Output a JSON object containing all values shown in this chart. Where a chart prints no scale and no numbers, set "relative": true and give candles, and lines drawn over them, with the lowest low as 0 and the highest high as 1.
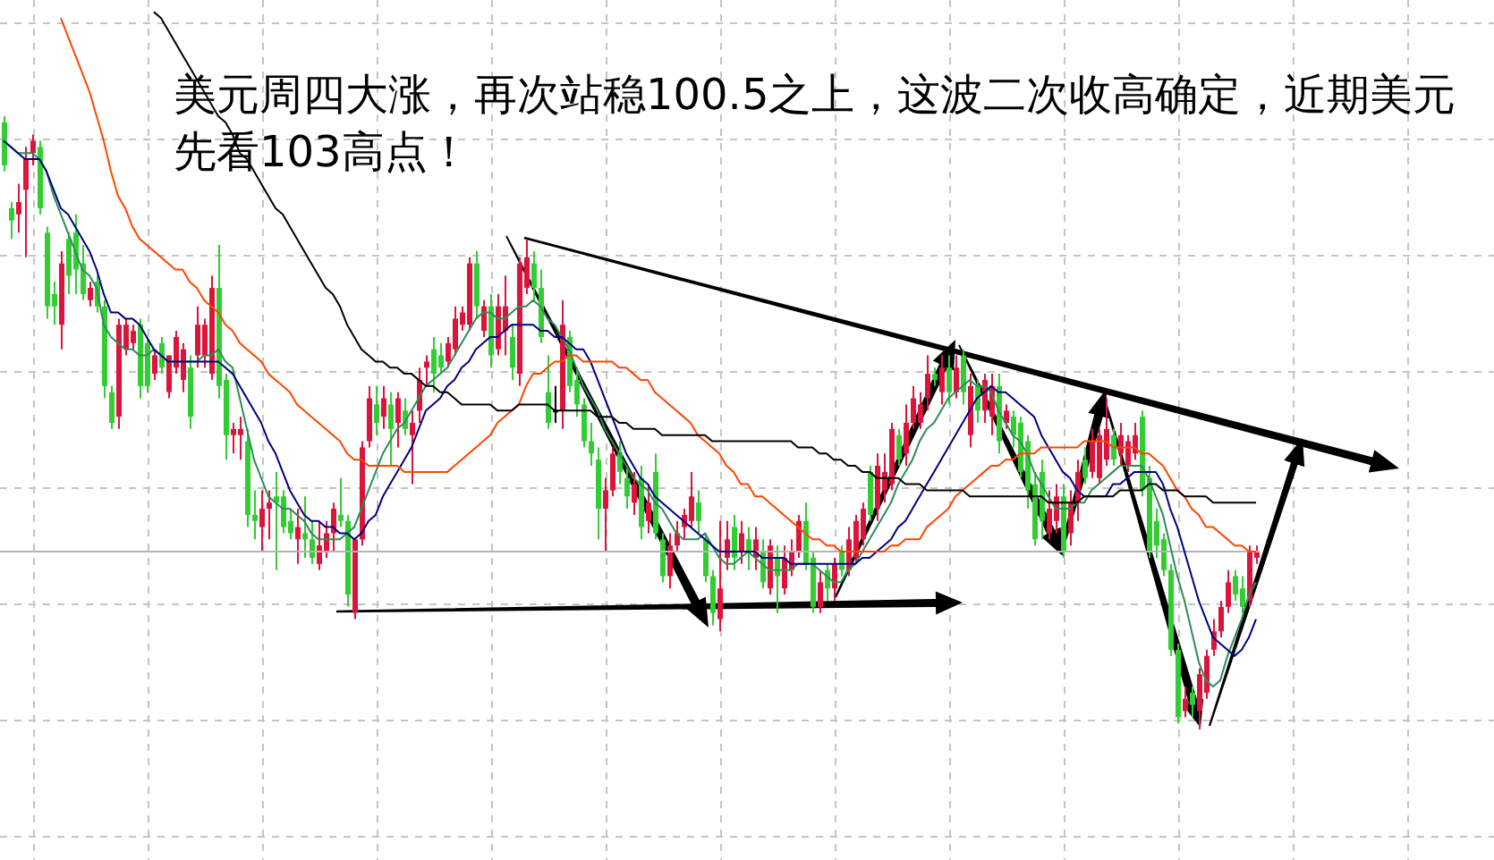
{
  "chart_data": {
    "type": "candlestick",
    "relative": true,
    "grid": true,
    "tick_labels": false,
    "annotations": [
      "美元周四大涨，再次站稳100.5之上，这波二次收高确定，近期美元先看103高点！"
    ],
    "categories": [
      null,
      null,
      null,
      null,
      null,
      null,
      null,
      null,
      null,
      null,
      null,
      null,
      null,
      null,
      null,
      null,
      null,
      null,
      null,
      null,
      null,
      null,
      null,
      null,
      null,
      null,
      null,
      null,
      null,
      null,
      null,
      null,
      null,
      null,
      null,
      null,
      null,
      null,
      null,
      null,
      null,
      null,
      null,
      null,
      null,
      null,
      null,
      null,
      null,
      null,
      null,
      null,
      null,
      null,
      null,
      null,
      null,
      null,
      null,
      null,
      null,
      null,
      null,
      null,
      null,
      null,
      null,
      null,
      null,
      null,
      null,
      null,
      null,
      null,
      null,
      null,
      null,
      null,
      null,
      null,
      null,
      null,
      null,
      null,
      null,
      null,
      null,
      null,
      null,
      null,
      null,
      null,
      null,
      null,
      null,
      null,
      null,
      null,
      null,
      null,
      null,
      null,
      null,
      null,
      null,
      null,
      null,
      null,
      null,
      null,
      null,
      null,
      null,
      null,
      null,
      null,
      null,
      null,
      null,
      null,
      null,
      null,
      null,
      null,
      null,
      null,
      null,
      null,
      null,
      null,
      null,
      null,
      null,
      null,
      null,
      null,
      null,
      null,
      null,
      null,
      null,
      null,
      null,
      null,
      null,
      null,
      null,
      null,
      null,
      null,
      null,
      null,
      null,
      null,
      null,
      null,
      null,
      null,
      null,
      null,
      null,
      null,
      null,
      null,
      null,
      null,
      null,
      null,
      null,
      null,
      null,
      null,
      null,
      null,
      null,
      null
    ],
    "ohlc": [
      [
        0.99,
        1.0,
        0.91,
        0.92
      ],
      [
        0.85,
        0.86,
        0.8,
        0.83
      ],
      [
        0.84,
        0.89,
        0.81,
        0.86
      ],
      [
        0.88,
        0.95,
        0.77,
        0.93
      ],
      [
        0.94,
        0.97,
        0.92,
        0.96
      ],
      [
        0.95,
        0.96,
        0.84,
        0.85
      ],
      [
        0.81,
        0.82,
        0.67,
        0.69
      ],
      [
        0.71,
        0.73,
        0.66,
        0.69
      ],
      [
        0.66,
        0.78,
        0.62,
        0.76
      ],
      [
        0.8,
        0.81,
        0.71,
        0.74
      ],
      [
        0.81,
        0.84,
        0.71,
        0.75
      ],
      [
        0.76,
        0.79,
        0.7,
        0.71
      ],
      [
        0.7,
        0.73,
        0.69,
        0.72
      ],
      [
        0.73,
        0.74,
        0.68,
        0.69
      ],
      [
        0.69,
        0.7,
        0.54,
        0.56
      ],
      [
        0.55,
        0.56,
        0.49,
        0.5
      ],
      [
        0.51,
        0.67,
        0.49,
        0.66
      ],
      [
        0.62,
        0.67,
        0.61,
        0.66
      ],
      [
        0.63,
        0.66,
        0.62,
        0.65
      ],
      [
        0.66,
        0.67,
        0.54,
        0.56
      ],
      [
        0.63,
        0.64,
        0.55,
        0.56
      ],
      [
        0.58,
        0.62,
        0.57,
        0.61
      ],
      [
        0.63,
        0.64,
        0.58,
        0.59
      ],
      [
        0.55,
        0.61,
        0.54,
        0.61
      ],
      [
        0.59,
        0.65,
        0.58,
        0.64
      ],
      [
        0.57,
        0.63,
        0.55,
        0.62
      ],
      [
        0.59,
        0.61,
        0.49,
        0.51
      ],
      [
        0.61,
        0.69,
        0.59,
        0.66
      ],
      [
        0.61,
        0.67,
        0.59,
        0.66
      ],
      [
        0.58,
        0.74,
        0.57,
        0.72
      ],
      [
        0.72,
        0.79,
        0.54,
        0.56
      ],
      [
        0.57,
        0.58,
        0.44,
        0.48
      ],
      [
        0.48,
        0.5,
        0.45,
        0.49
      ],
      [
        0.48,
        0.51,
        0.44,
        0.49
      ],
      [
        0.47,
        0.49,
        0.33,
        0.35
      ],
      [
        0.35,
        0.39,
        0.31,
        0.34
      ],
      [
        0.33,
        0.39,
        0.29,
        0.36
      ],
      [
        0.36,
        0.39,
        0.31,
        0.37
      ],
      [
        0.38,
        0.42,
        0.26,
        0.37
      ],
      [
        0.38,
        0.39,
        0.32,
        0.33
      ],
      [
        0.34,
        0.36,
        0.31,
        0.32
      ],
      [
        0.31,
        0.36,
        0.27,
        0.33
      ],
      [
        0.32,
        0.38,
        0.28,
        0.31
      ],
      [
        0.31,
        0.34,
        0.27,
        0.28
      ],
      [
        0.27,
        0.34,
        0.26,
        0.3
      ],
      [
        0.29,
        0.34,
        0.28,
        0.32
      ],
      [
        0.32,
        0.37,
        0.29,
        0.36
      ],
      [
        0.35,
        0.41,
        0.33,
        0.34
      ],
      [
        0.34,
        0.35,
        0.2,
        0.22
      ],
      [
        0.19,
        0.31,
        0.18,
        0.31
      ],
      [
        0.31,
        0.47,
        0.3,
        0.46
      ],
      [
        0.47,
        0.56,
        0.46,
        0.54
      ],
      [
        0.53,
        0.56,
        0.48,
        0.5
      ],
      [
        0.51,
        0.56,
        0.49,
        0.54
      ],
      [
        0.53,
        0.55,
        0.43,
        0.49
      ],
      [
        0.5,
        0.55,
        0.46,
        0.54
      ],
      [
        0.52,
        0.54,
        0.48,
        0.49
      ],
      [
        0.48,
        0.52,
        0.4,
        0.5
      ],
      [
        0.52,
        0.59,
        0.5,
        0.57
      ],
      [
        0.59,
        0.61,
        0.56,
        0.6
      ],
      [
        0.62,
        0.64,
        0.55,
        0.58
      ],
      [
        0.61,
        0.63,
        0.58,
        0.59
      ],
      [
        0.6,
        0.64,
        0.59,
        0.63
      ],
      [
        0.62,
        0.69,
        0.61,
        0.67
      ],
      [
        0.66,
        0.69,
        0.65,
        0.68
      ],
      [
        0.66,
        0.77,
        0.65,
        0.76
      ],
      [
        0.76,
        0.78,
        0.67,
        0.69
      ],
      [
        0.65,
        0.7,
        0.64,
        0.69
      ],
      [
        0.69,
        0.71,
        0.59,
        0.61
      ],
      [
        0.62,
        0.71,
        0.61,
        0.69
      ],
      [
        0.65,
        0.74,
        0.61,
        0.69
      ],
      [
        0.64,
        0.66,
        0.57,
        0.59
      ],
      [
        0.58,
        0.77,
        0.56,
        0.76
      ],
      [
        0.72,
        0.8,
        0.71,
        0.77
      ],
      [
        0.76,
        0.78,
        0.7,
        0.72
      ],
      [
        0.72,
        0.75,
        0.63,
        0.64
      ],
      [
        0.55,
        0.61,
        0.49,
        0.5
      ],
      [
        0.52,
        0.56,
        0.5,
        0.52
      ],
      [
        0.52,
        0.7,
        0.49,
        0.66
      ],
      [
        0.64,
        0.65,
        0.55,
        0.56
      ],
      [
        0.57,
        0.59,
        0.51,
        0.53
      ],
      [
        0.53,
        0.54,
        0.46,
        0.47
      ],
      [
        0.47,
        0.5,
        0.43,
        0.45
      ],
      [
        0.44,
        0.46,
        0.31,
        0.36
      ],
      [
        0.36,
        0.41,
        0.29,
        0.39
      ],
      [
        0.39,
        0.46,
        0.38,
        0.45
      ],
      [
        0.45,
        0.47,
        0.4,
        0.42
      ],
      [
        0.41,
        0.43,
        0.36,
        0.38
      ],
      [
        0.37,
        0.42,
        0.35,
        0.4
      ],
      [
        0.41,
        0.43,
        0.31,
        0.33
      ],
      [
        0.34,
        0.4,
        0.32,
        0.37
      ],
      [
        0.42,
        0.45,
        0.31,
        0.32
      ],
      [
        0.31,
        0.32,
        0.24,
        0.25
      ],
      [
        0.25,
        0.32,
        0.23,
        0.3
      ],
      [
        0.3,
        0.34,
        0.29,
        0.32
      ],
      [
        0.33,
        0.36,
        0.31,
        0.35
      ],
      [
        0.34,
        0.42,
        0.33,
        0.38
      ],
      [
        0.37,
        0.39,
        0.32,
        0.34
      ],
      [
        0.31,
        0.32,
        0.24,
        0.25
      ],
      [
        0.25,
        0.26,
        0.17,
        0.19
      ],
      [
        0.18,
        0.34,
        0.16,
        0.23
      ],
      [
        0.28,
        0.34,
        0.26,
        0.31
      ],
      [
        0.33,
        0.35,
        0.26,
        0.28
      ],
      [
        0.29,
        0.34,
        0.27,
        0.32
      ],
      [
        0.31,
        0.33,
        0.26,
        0.29
      ],
      [
        0.28,
        0.33,
        0.26,
        0.31
      ],
      [
        0.29,
        0.31,
        0.23,
        0.24
      ],
      [
        0.23,
        0.31,
        0.22,
        0.3
      ],
      [
        0.28,
        0.3,
        0.19,
        0.25
      ],
      [
        0.23,
        0.3,
        0.22,
        0.28
      ],
      [
        0.26,
        0.31,
        0.25,
        0.29
      ],
      [
        0.29,
        0.35,
        0.28,
        0.34
      ],
      [
        0.34,
        0.37,
        0.26,
        0.27
      ],
      [
        0.28,
        0.29,
        0.19,
        0.2
      ],
      [
        0.2,
        0.26,
        0.19,
        0.24
      ],
      [
        0.26,
        0.27,
        0.21,
        0.23
      ],
      [
        0.23,
        0.28,
        0.21,
        0.27
      ],
      [
        0.29,
        0.3,
        0.25,
        0.26
      ],
      [
        0.26,
        0.33,
        0.25,
        0.31
      ],
      [
        0.28,
        0.35,
        0.27,
        0.34
      ],
      [
        0.31,
        0.37,
        0.3,
        0.36
      ],
      [
        0.42,
        0.43,
        0.34,
        0.35
      ],
      [
        0.36,
        0.45,
        0.34,
        0.43
      ],
      [
        0.39,
        0.45,
        0.37,
        0.42
      ],
      [
        0.4,
        0.5,
        0.39,
        0.49
      ],
      [
        0.48,
        0.49,
        0.43,
        0.44
      ],
      [
        0.45,
        0.53,
        0.43,
        0.5
      ],
      [
        0.5,
        0.56,
        0.49,
        0.54
      ],
      [
        0.5,
        0.55,
        0.49,
        0.53
      ],
      [
        0.54,
        0.61,
        0.52,
        0.58
      ],
      [
        0.58,
        0.59,
        0.56,
        0.57
      ],
      [
        0.55,
        0.61,
        0.53,
        0.59
      ],
      [
        0.59,
        0.61,
        0.53,
        0.55
      ],
      [
        0.55,
        0.61,
        0.54,
        0.59
      ],
      [
        0.61,
        0.62,
        0.53,
        0.55
      ],
      [
        0.48,
        0.58,
        0.46,
        0.56
      ],
      [
        0.56,
        0.57,
        0.5,
        0.52
      ],
      [
        0.52,
        0.58,
        0.5,
        0.57
      ],
      [
        0.51,
        0.58,
        0.48,
        0.56
      ],
      [
        0.56,
        0.58,
        0.45,
        0.47
      ],
      [
        0.5,
        0.53,
        0.49,
        0.52
      ],
      [
        0.51,
        0.52,
        0.46,
        0.48
      ],
      [
        0.5,
        0.51,
        0.41,
        0.42
      ],
      [
        0.47,
        0.48,
        0.36,
        0.39
      ],
      [
        0.4,
        0.42,
        0.3,
        0.31
      ],
      [
        0.42,
        0.44,
        0.31,
        0.34
      ],
      [
        0.32,
        0.39,
        0.31,
        0.36
      ],
      [
        0.34,
        0.4,
        0.32,
        0.38
      ],
      [
        0.38,
        0.4,
        0.28,
        0.29
      ],
      [
        0.32,
        0.39,
        0.3,
        0.37
      ],
      [
        0.37,
        0.44,
        0.34,
        0.42
      ],
      [
        0.44,
        0.46,
        0.4,
        0.41
      ],
      [
        0.42,
        0.49,
        0.41,
        0.47
      ],
      [
        0.41,
        0.49,
        0.4,
        0.48
      ],
      [
        0.44,
        0.54,
        0.43,
        0.49
      ],
      [
        0.48,
        0.49,
        0.43,
        0.44
      ],
      [
        0.45,
        0.5,
        0.43,
        0.48
      ],
      [
        0.43,
        0.48,
        0.42,
        0.47
      ],
      [
        0.45,
        0.5,
        0.44,
        0.48
      ],
      [
        0.51,
        0.52,
        0.38,
        0.39
      ],
      [
        0.41,
        0.43,
        0.28,
        0.29
      ],
      [
        0.34,
        0.36,
        0.28,
        0.3
      ],
      [
        0.31,
        0.32,
        0.25,
        0.26
      ],
      [
        0.26,
        0.27,
        0.12,
        0.13
      ],
      [
        0.13,
        0.14,
        0.01,
        0.02
      ],
      [
        0.03,
        0.07,
        0.02,
        0.05
      ],
      [
        0.06,
        0.07,
        0.02,
        0.04
      ],
      [
        0.03,
        0.1,
        0.0,
        0.09
      ],
      [
        0.06,
        0.13,
        0.05,
        0.12
      ],
      [
        0.13,
        0.18,
        0.12,
        0.16
      ],
      [
        0.16,
        0.21,
        0.15,
        0.2
      ],
      [
        0.2,
        0.26,
        0.19,
        0.24
      ],
      [
        0.25,
        0.26,
        0.21,
        0.22
      ],
      [
        0.23,
        0.25,
        0.19,
        0.2
      ],
      [
        0.21,
        0.3,
        0.2,
        0.29
      ],
      [
        0.28,
        0.3,
        0.27,
        0.29
      ]
    ],
    "colors": [
      "#32cd32",
      "#32cd32",
      "#dc143c",
      "#dc143c",
      "#dc143c",
      "#32cd32",
      "#32cd32",
      "#32cd32",
      "#dc143c",
      "#32cd32",
      "#32cd32",
      "#32cd32",
      "#dc143c",
      "#32cd32",
      "#32cd32",
      "#32cd32",
      "#dc143c",
      "#dc143c",
      "#dc143c",
      "#32cd32",
      "#32cd32",
      "#dc143c",
      "#32cd32",
      "#dc143c",
      "#dc143c",
      "#dc143c",
      "#32cd32",
      "#dc143c",
      "#dc143c",
      "#dc143c",
      "#32cd32",
      "#32cd32",
      "#dc143c",
      "#dc143c",
      "#32cd32",
      "#32cd32",
      "#dc143c",
      "#dc143c",
      "#32cd32",
      "#32cd32",
      "#32cd32",
      "#dc143c",
      "#32cd32",
      "#32cd32",
      "#dc143c",
      "#dc143c",
      "#dc143c",
      "#32cd32",
      "#32cd32",
      "#dc143c",
      "#dc143c",
      "#dc143c",
      "#32cd32",
      "#dc143c",
      "#32cd32",
      "#dc143c",
      "#32cd32",
      "#dc143c",
      "#dc143c",
      "#dc143c",
      "#32cd32",
      "#32cd32",
      "#dc143c",
      "#dc143c",
      "#dc143c",
      "#dc143c",
      "#32cd32",
      "#dc143c",
      "#32cd32",
      "#dc143c",
      "#dc143c",
      "#32cd32",
      "#dc143c",
      "#dc143c",
      "#32cd32",
      "#32cd32",
      "#32cd32",
      "#000000",
      "#dc143c",
      "#32cd32",
      "#32cd32",
      "#32cd32",
      "#32cd32",
      "#32cd32",
      "#dc143c",
      "#dc143c",
      "#32cd32",
      "#32cd32",
      "#dc143c",
      "#32cd32",
      "#dc143c",
      "#32cd32",
      "#32cd32",
      "#dc143c",
      "#dc143c",
      "#dc143c",
      "#dc143c",
      "#32cd32",
      "#32cd32",
      "#32cd32",
      "#dc143c",
      "#dc143c",
      "#32cd32",
      "#dc143c",
      "#32cd32",
      "#dc143c",
      "#32cd32",
      "#dc143c",
      "#32cd32",
      "#dc143c",
      "#dc143c",
      "#dc143c",
      "#32cd32",
      "#32cd32",
      "#dc143c",
      "#32cd32",
      "#dc143c",
      "#32cd32",
      "#dc143c",
      "#dc143c",
      "#dc143c",
      "#32cd32",
      "#dc143c",
      "#dc143c",
      "#dc143c",
      "#32cd32",
      "#dc143c",
      "#dc143c",
      "#dc143c",
      "#dc143c",
      "#32cd32",
      "#dc143c",
      "#32cd32",
      "#dc143c",
      "#32cd32",
      "#dc143c",
      "#32cd32",
      "#dc143c",
      "#dc143c",
      "#32cd32",
      "#dc143c",
      "#32cd32",
      "#32cd32",
      "#32cd32",
      "#32cd32",
      "#32cd32",
      "#dc143c",
      "#dc143c",
      "#32cd32",
      "#dc143c",
      "#dc143c",
      "#32cd32",
      "#dc143c",
      "#dc143c",
      "#dc143c",
      "#32cd32",
      "#dc143c",
      "#dc143c",
      "#dc143c",
      "#32cd32",
      "#32cd32",
      "#32cd32",
      "#32cd32",
      "#32cd32",
      "#32cd32",
      "#dc143c",
      "#32cd32",
      "#dc143c",
      "#dc143c",
      "#dc143c",
      "#dc143c",
      "#dc143c",
      "#32cd32",
      "#32cd32",
      "#dc143c",
      "#dc143c"
    ],
    "series": [
      {
        "type": "line",
        "color": "#2e8b57",
        "values": [
          0.96,
          0.95,
          0.94,
          0.94,
          0.94,
          0.93,
          0.91,
          0.87,
          0.84,
          0.81,
          0.78,
          0.75,
          0.74,
          0.72,
          0.66,
          0.64,
          0.63,
          0.62,
          0.62,
          0.61,
          0.61,
          0.62,
          0.61,
          0.6,
          0.6,
          0.6,
          0.6,
          0.6,
          0.61,
          0.61,
          0.62,
          0.6,
          0.59,
          0.54,
          0.49,
          0.44,
          0.41,
          0.38,
          0.37,
          0.36,
          0.36,
          0.35,
          0.34,
          0.32,
          0.31,
          0.31,
          0.31,
          0.31,
          0.32,
          0.33,
          0.36,
          0.39,
          0.42,
          0.45,
          0.47,
          0.49,
          0.5,
          0.52,
          0.54,
          0.56,
          0.57,
          0.58,
          0.59,
          0.61,
          0.63,
          0.65,
          0.67,
          0.68,
          0.68,
          0.67,
          0.67,
          0.68,
          0.69,
          0.69,
          0.7,
          0.69,
          0.67,
          0.66,
          0.64,
          0.62,
          0.59,
          0.56,
          0.54,
          0.52,
          0.49,
          0.47,
          0.45,
          0.43,
          0.41,
          0.4,
          0.39,
          0.37,
          0.36,
          0.34,
          0.32,
          0.31,
          0.31,
          0.31,
          0.32,
          0.3,
          0.28,
          0.27,
          0.27,
          0.28,
          0.29,
          0.28,
          0.27,
          0.26,
          0.26,
          0.26,
          0.26,
          0.27,
          0.27,
          0.27,
          0.26,
          0.25,
          0.24,
          0.24,
          0.26,
          0.27,
          0.29,
          0.31,
          0.33,
          0.35,
          0.37,
          0.4,
          0.42,
          0.44,
          0.47,
          0.49,
          0.5,
          0.52,
          0.54,
          0.55,
          0.56,
          0.57,
          0.56,
          0.56,
          0.55,
          0.52,
          0.5,
          0.48,
          0.47,
          0.45,
          0.42,
          0.4,
          0.38,
          0.36,
          0.36,
          0.36,
          0.37,
          0.37,
          0.39,
          0.4,
          0.41,
          0.42,
          0.43,
          0.43,
          0.43,
          0.43,
          0.41,
          0.38,
          0.35,
          0.3,
          0.25,
          0.21,
          0.16,
          0.11,
          0.08,
          0.07,
          0.08,
          0.12,
          0.15,
          0.18,
          0.22,
          0.24
        ]
      },
      {
        "type": "line",
        "color": "#000080",
        "values": [
          0.96,
          0.95,
          0.94,
          0.93,
          0.93,
          0.93,
          0.91,
          0.88,
          0.85,
          0.84,
          0.82,
          0.8,
          0.78,
          0.75,
          0.71,
          0.68,
          0.68,
          0.67,
          0.67,
          0.66,
          0.64,
          0.62,
          0.61,
          0.6,
          0.6,
          0.6,
          0.6,
          0.6,
          0.6,
          0.6,
          0.6,
          0.59,
          0.58,
          0.56,
          0.54,
          0.52,
          0.5,
          0.47,
          0.45,
          0.42,
          0.39,
          0.37,
          0.35,
          0.34,
          0.34,
          0.33,
          0.33,
          0.32,
          0.32,
          0.31,
          0.32,
          0.34,
          0.35,
          0.38,
          0.4,
          0.42,
          0.44,
          0.46,
          0.49,
          0.52,
          0.53,
          0.54,
          0.56,
          0.57,
          0.59,
          0.6,
          0.62,
          0.63,
          0.64,
          0.64,
          0.65,
          0.66,
          0.66,
          0.66,
          0.66,
          0.65,
          0.65,
          0.64,
          0.64,
          0.63,
          0.62,
          0.62,
          0.6,
          0.57,
          0.54,
          0.51,
          0.48,
          0.45,
          0.43,
          0.41,
          0.4,
          0.38,
          0.37,
          0.36,
          0.35,
          0.34,
          0.33,
          0.32,
          0.31,
          0.3,
          0.29,
          0.29,
          0.29,
          0.29,
          0.29,
          0.29,
          0.28,
          0.28,
          0.28,
          0.28,
          0.27,
          0.27,
          0.27,
          0.27,
          0.27,
          0.27,
          0.27,
          0.27,
          0.27,
          0.27,
          0.28,
          0.28,
          0.29,
          0.3,
          0.31,
          0.33,
          0.34,
          0.36,
          0.38,
          0.4,
          0.42,
          0.44,
          0.46,
          0.48,
          0.5,
          0.52,
          0.54,
          0.55,
          0.56,
          0.55,
          0.55,
          0.54,
          0.53,
          0.52,
          0.51,
          0.48,
          0.46,
          0.44,
          0.42,
          0.41,
          0.39,
          0.38,
          0.38,
          0.38,
          0.38,
          0.4,
          0.4,
          0.41,
          0.42,
          0.42,
          0.42,
          0.42,
          0.4,
          0.36,
          0.33,
          0.29,
          0.25,
          0.21,
          0.18,
          0.15,
          0.14,
          0.13,
          0.12,
          0.13,
          0.15,
          0.18
        ]
      },
      {
        "type": "line",
        "color": "#ff4500",
        "values": [
          null,
          null,
          null,
          null,
          null,
          null,
          null,
          null,
          1.16,
          1.13,
          1.1,
          1.07,
          1.04,
          1.0,
          0.96,
          0.91,
          0.87,
          0.85,
          0.82,
          0.8,
          0.79,
          0.78,
          0.77,
          0.76,
          0.75,
          0.75,
          0.73,
          0.72,
          0.7,
          0.69,
          0.68,
          0.66,
          0.65,
          0.63,
          0.62,
          0.61,
          0.6,
          0.58,
          0.57,
          0.56,
          0.55,
          0.53,
          0.52,
          0.51,
          0.5,
          0.49,
          0.48,
          0.47,
          0.45,
          0.44,
          0.44,
          0.43,
          0.43,
          0.43,
          0.43,
          0.43,
          0.42,
          0.42,
          0.42,
          0.42,
          0.42,
          0.42,
          0.42,
          0.43,
          0.44,
          0.45,
          0.46,
          0.47,
          0.48,
          0.5,
          0.51,
          0.52,
          0.53,
          0.56,
          0.58,
          0.58,
          0.59,
          0.6,
          0.6,
          0.61,
          0.61,
          0.6,
          0.6,
          0.6,
          0.6,
          0.6,
          0.59,
          0.59,
          0.58,
          0.57,
          0.57,
          0.55,
          0.54,
          0.53,
          0.52,
          0.51,
          0.5,
          0.48,
          0.47,
          0.46,
          0.45,
          0.43,
          0.42,
          0.4,
          0.4,
          0.38,
          0.38,
          0.37,
          0.36,
          0.35,
          0.34,
          0.33,
          0.32,
          0.31,
          0.31,
          0.3,
          0.3,
          0.29,
          0.29,
          0.29,
          0.29,
          0.29,
          0.29,
          0.29,
          0.3,
          0.3,
          0.31,
          0.31,
          0.31,
          0.33,
          0.34,
          0.35,
          0.36,
          0.38,
          0.39,
          0.4,
          0.41,
          0.42,
          0.43,
          0.43,
          0.44,
          0.44,
          0.45,
          0.45,
          0.45,
          0.46,
          0.46,
          0.46,
          0.46,
          0.46,
          0.46,
          0.47,
          0.47,
          0.47,
          0.47,
          0.46,
          0.46,
          0.46,
          0.46,
          0.45,
          0.45,
          0.44,
          0.43,
          0.41,
          0.39,
          0.38,
          0.36,
          0.35,
          0.33,
          0.33,
          0.32,
          0.31,
          0.3,
          0.3,
          0.29,
          0.29
        ]
      },
      {
        "type": "line",
        "color": "#000000",
        "values": [
          null,
          null,
          null,
          null,
          null,
          null,
          null,
          null,
          null,
          null,
          null,
          null,
          null,
          null,
          null,
          null,
          null,
          null,
          null,
          null,
          null,
          1.17,
          1.16,
          1.14,
          1.12,
          1.1,
          1.08,
          1.06,
          1.04,
          1.02,
          1.0,
          0.99,
          0.97,
          0.94,
          0.93,
          0.91,
          0.89,
          0.87,
          0.85,
          0.84,
          0.82,
          0.8,
          0.78,
          0.76,
          0.74,
          0.72,
          0.71,
          0.69,
          0.66,
          0.64,
          0.62,
          0.61,
          0.6,
          0.6,
          0.59,
          0.59,
          0.58,
          0.58,
          0.57,
          0.56,
          0.56,
          0.55,
          0.55,
          0.54,
          0.53,
          0.53,
          0.53,
          0.53,
          0.53,
          0.52,
          0.52,
          0.52,
          0.53,
          0.53,
          0.53,
          0.53,
          0.53,
          0.52,
          0.52,
          0.52,
          0.52,
          0.52,
          0.52,
          0.51,
          0.51,
          0.51,
          0.5,
          0.5,
          0.49,
          0.49,
          0.49,
          0.49,
          0.48,
          0.48,
          0.48,
          0.48,
          0.48,
          0.48,
          0.48,
          0.47,
          0.47,
          0.47,
          0.47,
          0.47,
          0.47,
          0.47,
          0.47,
          0.47,
          0.47,
          0.47,
          0.47,
          0.46,
          0.46,
          0.46,
          0.45,
          0.45,
          0.44,
          0.44,
          0.43,
          0.43,
          0.42,
          0.42,
          0.41,
          0.41,
          0.41,
          0.41,
          0.4,
          0.4,
          0.4,
          0.39,
          0.39,
          0.39,
          0.39,
          0.39,
          0.39,
          0.38,
          0.38,
          0.38,
          0.38,
          0.38,
          0.38,
          0.38,
          0.38,
          0.38,
          0.38,
          0.38,
          0.37,
          0.37,
          0.37,
          0.37,
          0.37,
          0.38,
          0.38,
          0.38,
          0.38,
          0.38,
          0.39,
          0.39,
          0.39,
          0.39,
          0.4,
          0.4,
          0.39,
          0.39,
          0.39,
          0.38,
          0.38,
          0.38,
          0.38,
          0.37,
          0.37,
          0.37,
          0.37,
          0.37,
          0.37,
          0.37
        ]
      }
    ],
    "ref_lines": [
      {
        "axis": "y",
        "value": 0.29,
        "color": "#b4b4b4"
      }
    ]
  }
}
